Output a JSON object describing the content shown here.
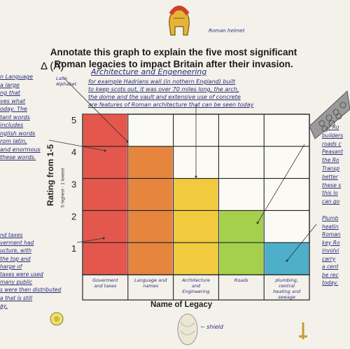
{
  "title": "Annotate this graph to explain the five most significant Roman legacies to impact Britain after their invasion.",
  "title_marker": "Δ (A)",
  "helmet_label": "Roman helmet",
  "shield_label": "~ shield",
  "latin_note": "Latin Alphabet",
  "annotation": {
    "heading": "Architecture and Engeneering",
    "lines": [
      "for example Hadrians wall (in nothern England) built",
      "to keep scots out, it was over 70 miles long, the arch,",
      "the dome and the vault and extensive use of concrete",
      "are features of Roman architecture that can be seen today"
    ]
  },
  "left_margin": [
    "n Language",
    "a large",
    "ng that",
    "ves what",
    "oday. The",
    "tant words",
    "includes",
    "nglish words",
    "rom latin,",
    "and enormous",
    "these words."
  ],
  "left_margin_lower": [
    "nd taxes",
    "verment had",
    "ucture, with",
    "the top and",
    "harge of",
    "taxes were used",
    "many public",
    "s were then distributed",
    "a that is still",
    "ay."
  ],
  "right_margin": [
    "the Ro",
    "builders",
    "roads c",
    "Peasant",
    "the Ro",
    "Transp",
    "better",
    "these s",
    "this lo",
    "can go"
  ],
  "right_margin_lower": [
    "Plumb",
    "heatin",
    "Roman",
    "key Ro",
    "involvi",
    "carry",
    "a cent",
    "be rec",
    "today."
  ],
  "chart_data": {
    "type": "bar",
    "categories": [
      "Goverment and taxes",
      "Language and names",
      "Architecture and Engineering",
      "Roads",
      "plumbing, central heating and sewage"
    ],
    "values": [
      5,
      4,
      3,
      2,
      1
    ],
    "colors": [
      "#e0453a",
      "#e3782a",
      "#f0c42a",
      "#9acb3a",
      "#3aa6c4"
    ],
    "ylabel": "Rating from 1-5",
    "ylabel_sub": "5 highest - 1 lowest",
    "xlabel": "Name of Legacy",
    "yticks": [
      "1",
      "2",
      "3",
      "4",
      "5"
    ],
    "ylim": [
      0,
      5.5
    ],
    "grid": true
  }
}
